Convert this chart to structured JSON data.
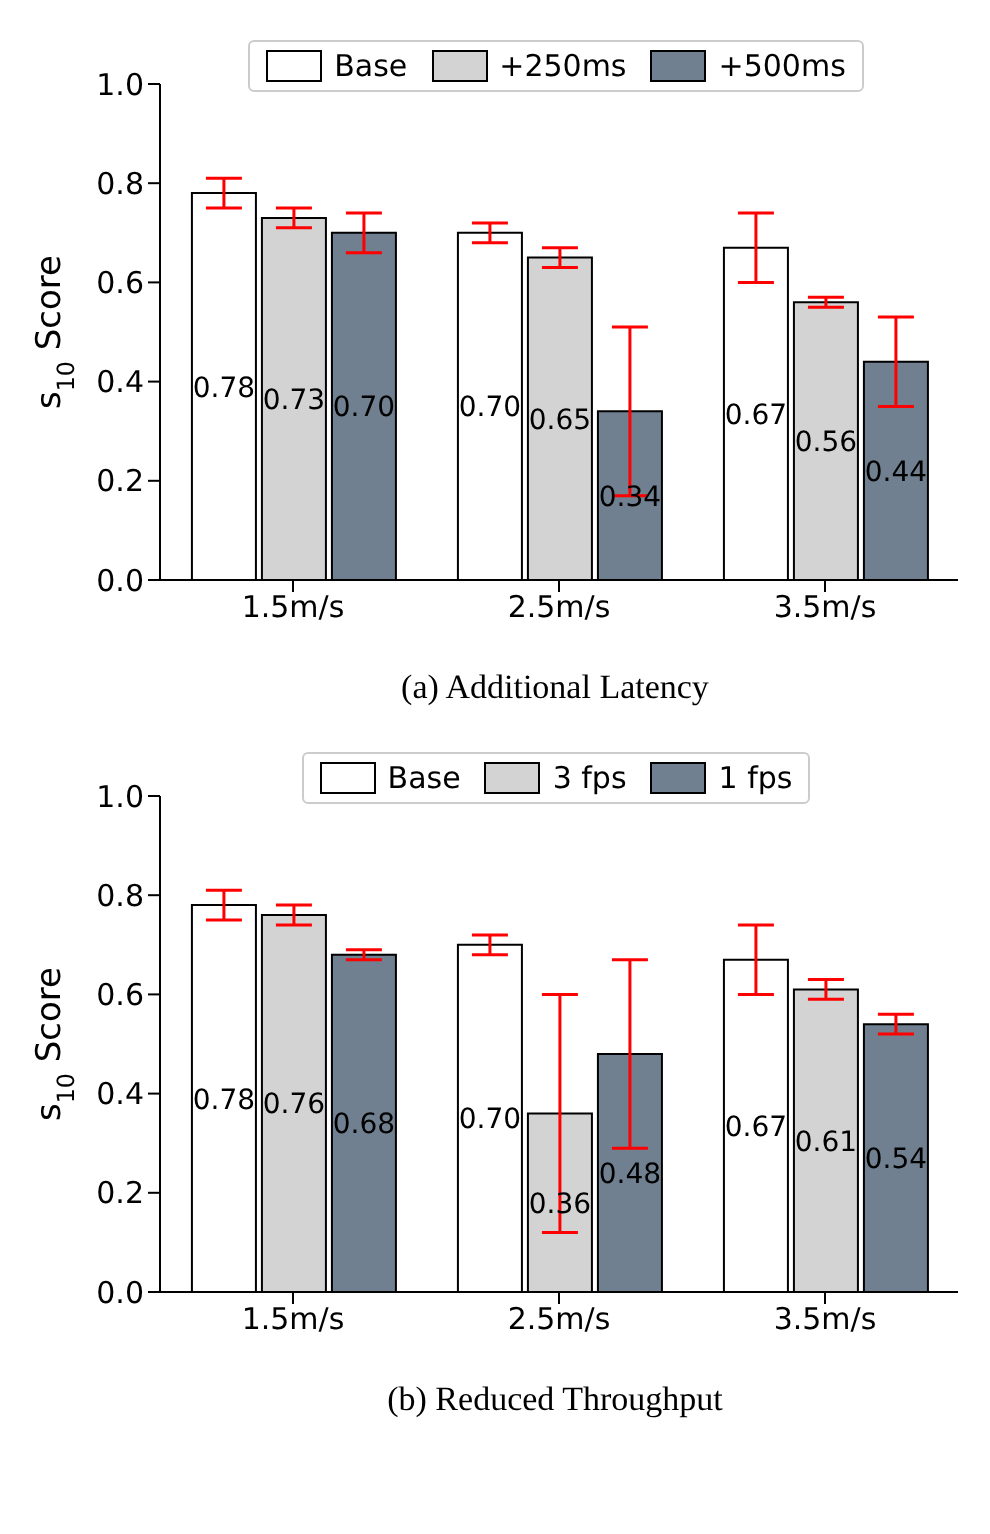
{
  "chart_data": [
    {
      "type": "bar",
      "title": "(a) Additional Latency",
      "ylabel": "s$_{10}$ Score",
      "categories": [
        "1.5m/s",
        "2.5m/s",
        "3.5m/s"
      ],
      "ylim": [
        0,
        1
      ],
      "yticks": [
        {
          "value": 0,
          "label": "0.0"
        },
        {
          "value": 0.2,
          "label": "0.2"
        },
        {
          "value": 0.4,
          "label": "0.4"
        },
        {
          "value": 0.6,
          "label": "0.6"
        },
        {
          "value": 0.8,
          "label": "0.8"
        },
        {
          "value": 1,
          "label": "1.0"
        }
      ],
      "legend": "top",
      "grid": false,
      "series": [
        {
          "name": "Base",
          "color": "#ffffff",
          "values": [
            0.78,
            0.7,
            0.67
          ],
          "value_labels": [
            "0.78",
            "0.70",
            "0.67"
          ],
          "errors": [
            [
              0.75,
              0.81
            ],
            [
              0.68,
              0.72
            ],
            [
              0.6,
              0.74
            ]
          ]
        },
        {
          "name": "+250ms",
          "color": "#d3d3d3",
          "values": [
            0.73,
            0.65,
            0.56
          ],
          "value_labels": [
            "0.73",
            "0.65",
            "0.56"
          ],
          "errors": [
            [
              0.71,
              0.75
            ],
            [
              0.63,
              0.67
            ],
            [
              0.55,
              0.57
            ]
          ]
        },
        {
          "name": "+500ms",
          "color": "#708090",
          "values": [
            0.7,
            0.34,
            0.44
          ],
          "value_labels": [
            "0.70",
            "0.34",
            "0.44"
          ],
          "errors": [
            [
              0.66,
              0.74
            ],
            [
              0.17,
              0.51
            ],
            [
              0.35,
              0.53
            ]
          ]
        }
      ]
    },
    {
      "type": "bar",
      "title": "(b) Reduced Throughput",
      "ylabel": "s$_{10}$ Score",
      "categories": [
        "1.5m/s",
        "2.5m/s",
        "3.5m/s"
      ],
      "ylim": [
        0,
        1
      ],
      "yticks": [
        {
          "value": 0,
          "label": "0.0"
        },
        {
          "value": 0.2,
          "label": "0.2"
        },
        {
          "value": 0.4,
          "label": "0.4"
        },
        {
          "value": 0.6,
          "label": "0.6"
        },
        {
          "value": 0.8,
          "label": "0.8"
        },
        {
          "value": 1,
          "label": "1.0"
        }
      ],
      "legend": "top",
      "grid": false,
      "series": [
        {
          "name": "Base",
          "color": "#ffffff",
          "values": [
            0.78,
            0.7,
            0.67
          ],
          "value_labels": [
            "0.78",
            "0.70",
            "0.67"
          ],
          "errors": [
            [
              0.75,
              0.81
            ],
            [
              0.68,
              0.72
            ],
            [
              0.6,
              0.74
            ]
          ]
        },
        {
          "name": "3 fps",
          "color": "#d3d3d3",
          "values": [
            0.76,
            0.36,
            0.61
          ],
          "value_labels": [
            "0.76",
            "0.36",
            "0.61"
          ],
          "errors": [
            [
              0.74,
              0.78
            ],
            [
              0.12,
              0.6
            ],
            [
              0.59,
              0.63
            ]
          ]
        },
        {
          "name": "1 fps",
          "color": "#708090",
          "values": [
            0.68,
            0.48,
            0.54
          ],
          "value_labels": [
            "0.68",
            "0.48",
            "0.54"
          ],
          "errors": [
            [
              0.67,
              0.69
            ],
            [
              0.29,
              0.67
            ],
            [
              0.52,
              0.56
            ]
          ]
        }
      ]
    }
  ]
}
